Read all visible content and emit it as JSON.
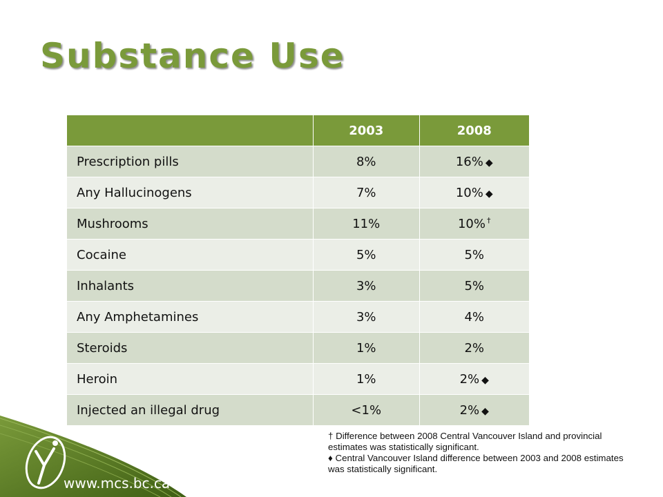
{
  "title": "Substance Use",
  "table": {
    "headers": [
      "",
      "2003",
      "2008"
    ],
    "rows": [
      {
        "label": "Prescription pills",
        "y2003": "8%",
        "y2008": "16%",
        "marker": "◆"
      },
      {
        "label": "Any Hallucinogens",
        "y2003": "7%",
        "y2008": "10%",
        "marker": "◆"
      },
      {
        "label": "Mushrooms",
        "y2003": "11%",
        "y2008": "10%",
        "marker": "†"
      },
      {
        "label": "Cocaine",
        "y2003": "5%",
        "y2008": "5%",
        "marker": ""
      },
      {
        "label": "Inhalants",
        "y2003": "3%",
        "y2008": "5%",
        "marker": ""
      },
      {
        "label": "Any Amphetamines",
        "y2003": "3%",
        "y2008": "4%",
        "marker": ""
      },
      {
        "label": "Steroids",
        "y2003": "1%",
        "y2008": "2%",
        "marker": ""
      },
      {
        "label": "Heroin",
        "y2003": "1%",
        "y2008": "2%",
        "marker": "◆"
      },
      {
        "label": "Injected an illegal drug",
        "y2003": "<1%",
        "y2008": "2%",
        "marker": "◆"
      }
    ]
  },
  "footnotes": {
    "dagger": "† Difference between 2008 Central Vancouver Island and provincial estimates was statistically significant.",
    "diamond": "♦ Central Vancouver Island difference between 2003 and 2008 estimates was statistically significant."
  },
  "footer": {
    "url": "www.mcs.bc.ca",
    "logo_icon": "mcs-logo-icon"
  },
  "colors": {
    "accent": "#7a9a3a",
    "header_fill": "#7a9a3a",
    "row_odd": "#d4dccb",
    "row_even": "#ebeee7",
    "corner_dark": "#3f5f14"
  }
}
